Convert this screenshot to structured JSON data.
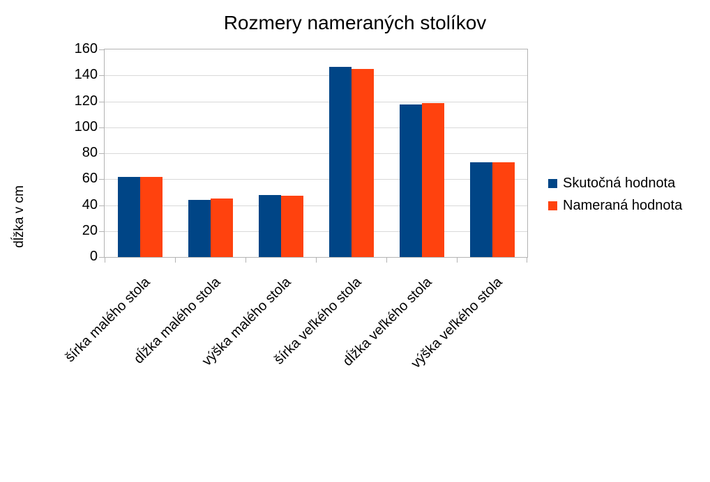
{
  "title": "Rozmery nameraných stolíkov",
  "chart_data": {
    "type": "bar",
    "title": "Rozmery nameraných stolíkov",
    "xlabel": "",
    "ylabel": "dĺžka v cm",
    "ylim": [
      0,
      160
    ],
    "yticks": [
      0,
      20,
      40,
      60,
      80,
      100,
      120,
      140,
      160
    ],
    "grid": true,
    "legend_position": "right",
    "background_color": "#ffffff",
    "gridline_color": "#d9d9d9",
    "axis_color": "#b3b3b3",
    "categories": [
      "šírka malého stola",
      "dĺžka malého stola",
      "výška malého stola",
      "šírka veľkého stola",
      "dĺžka veľkého stola",
      "výška veľkého stola"
    ],
    "series": [
      {
        "name": "Skutočná hodnota",
        "color": "#004586",
        "values": [
          62,
          44,
          48,
          146.5,
          117.5,
          73
        ]
      },
      {
        "name": "Nameraná hodnota",
        "color": "#FF420E",
        "values": [
          61.5,
          45,
          47,
          145,
          118.5,
          73
        ]
      }
    ]
  }
}
